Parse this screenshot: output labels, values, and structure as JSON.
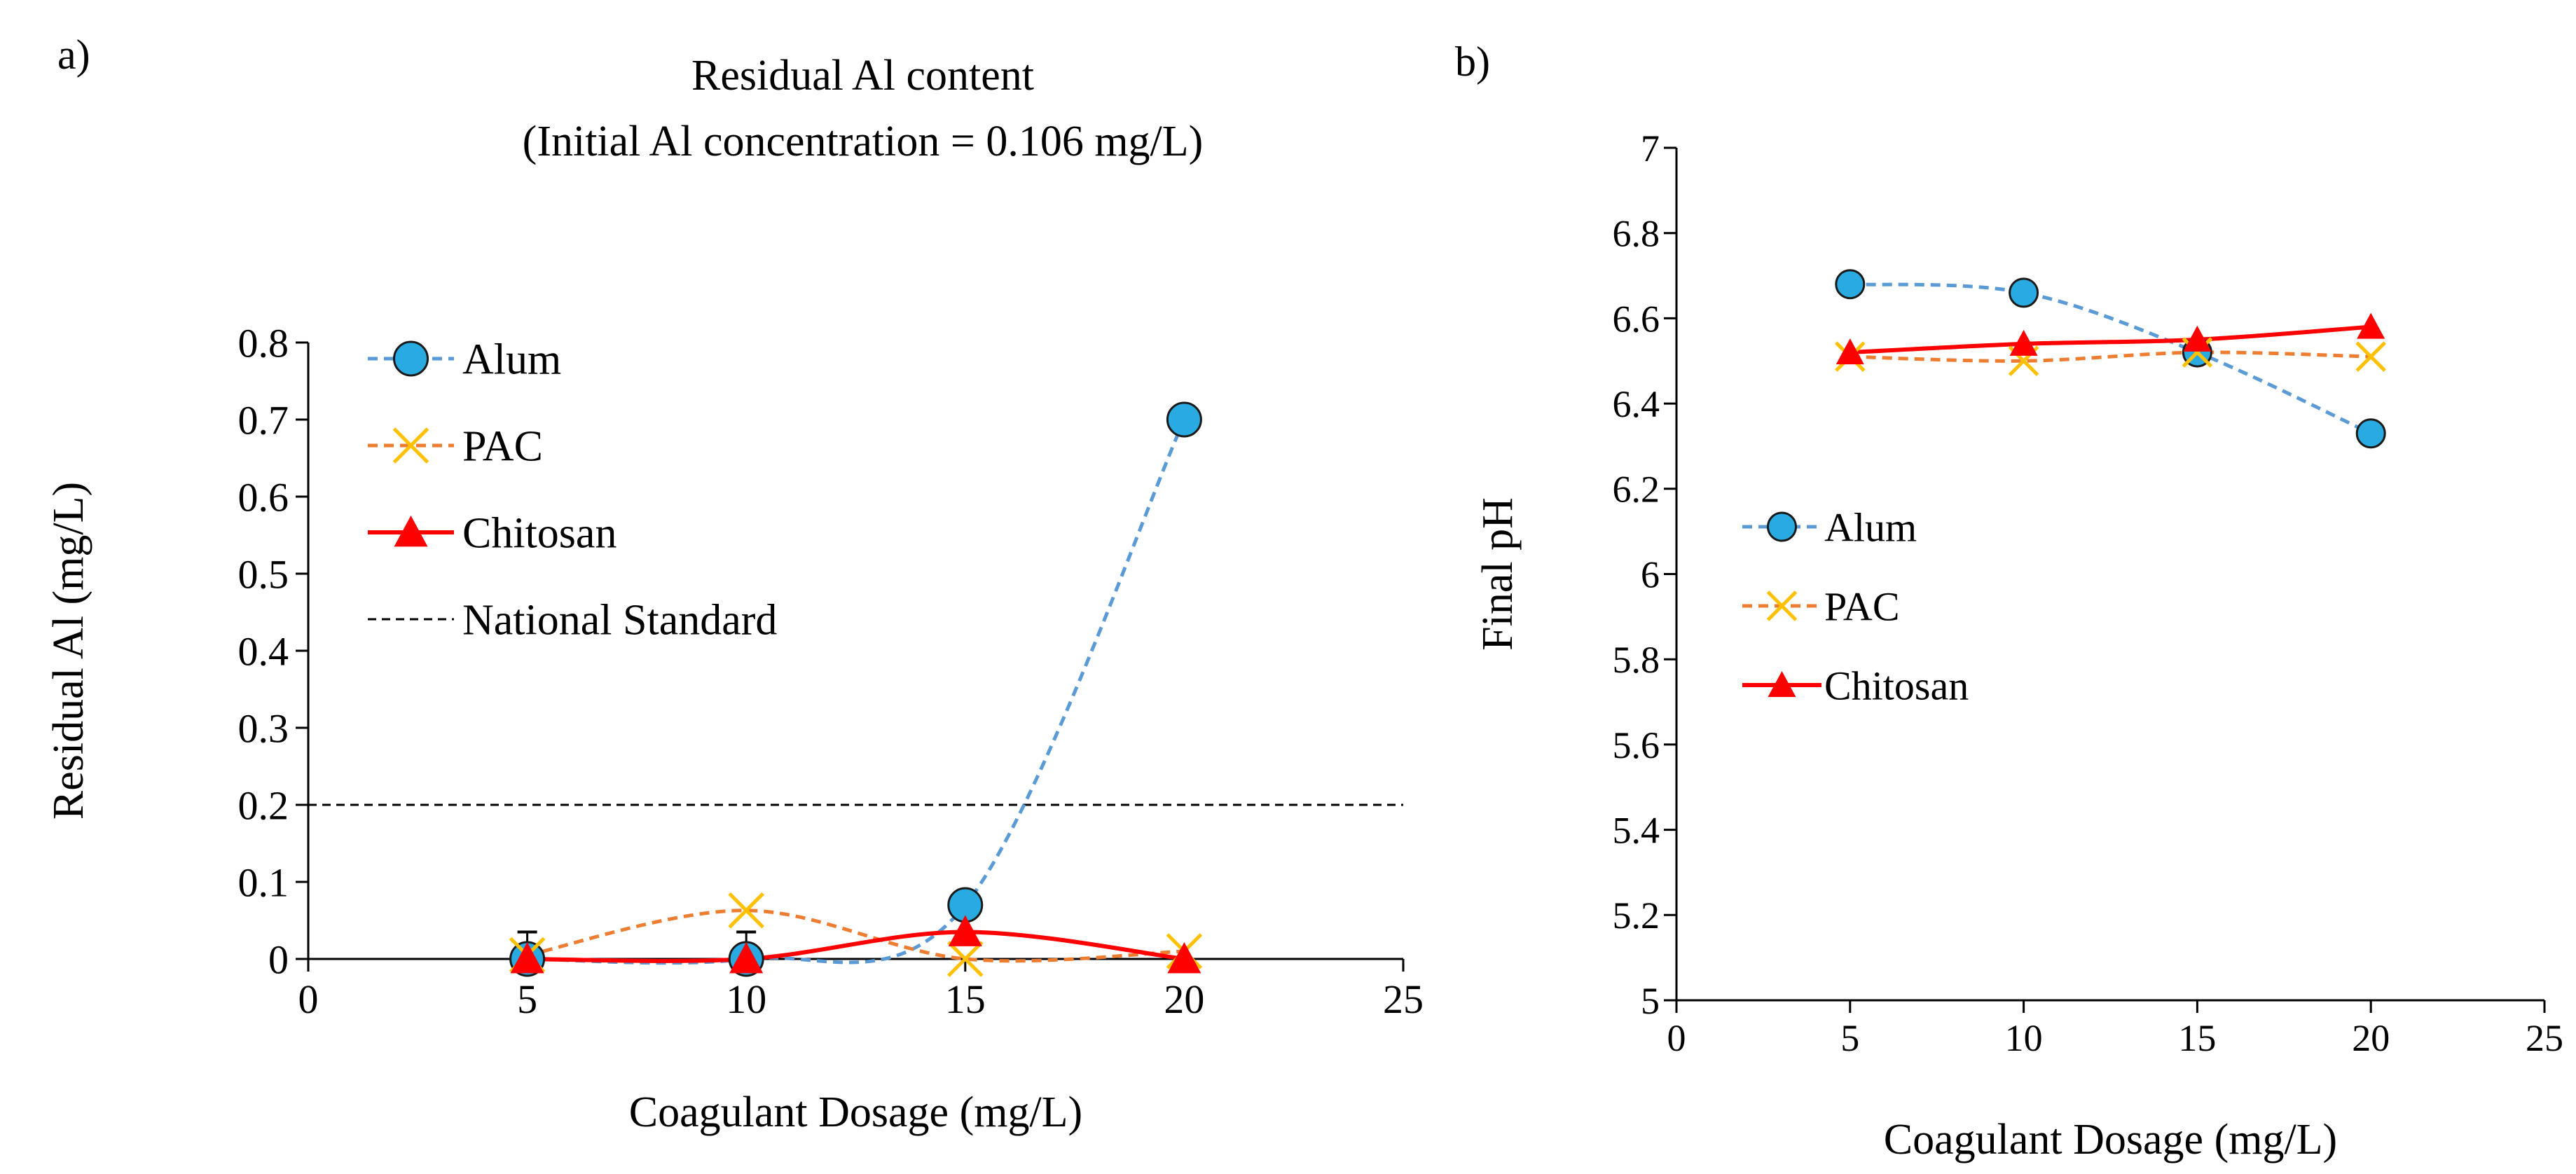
{
  "figure": {
    "colors": {
      "alum_line": "#5B9BD5",
      "alum_marker": "#29ABE2",
      "pac": "#ED7D31",
      "pac_marker": "#FFC000",
      "chitosan": "#FF0000",
      "standard": "#000000",
      "axis": "#000000"
    }
  },
  "chart_data": [
    {
      "panel_label": "a)",
      "type": "line",
      "title": "Residual Al content",
      "subtitle": "(Initial Al concentration = 0.106 mg/L)",
      "xlabel": "Coagulant Dosage (mg/L)",
      "ylabel": "Residual Al (mg/L)",
      "xlim": [
        0,
        25
      ],
      "ylim": [
        0,
        0.8
      ],
      "xticks": [
        "0",
        "5",
        "10",
        "15",
        "20",
        "25"
      ],
      "yticks": [
        "0",
        "0.1",
        "0.2",
        "0.3",
        "0.4",
        "0.5",
        "0.6",
        "0.7",
        "0.8"
      ],
      "legend_position": "top-left",
      "x": [
        5,
        10,
        15,
        20
      ],
      "series": [
        {
          "name": "Alum",
          "marker": "circle",
          "values": [
            0,
            0,
            0.07,
            0.7
          ]
        },
        {
          "name": "PAC",
          "marker": "x",
          "values": [
            0.005,
            0.063,
            0,
            0.01
          ]
        },
        {
          "name": "Chitosan",
          "marker": "triangle",
          "values": [
            0,
            0,
            0.035,
            0
          ]
        }
      ],
      "error_bars": {
        "x": [
          5,
          10
        ],
        "upper": [
          0.035,
          0.035
        ]
      },
      "reference_line": {
        "name": "National Standard",
        "value": 0.2
      }
    },
    {
      "panel_label": "b)",
      "type": "line",
      "title": "",
      "xlabel": "Coagulant Dosage (mg/L)",
      "ylabel": "Final pH",
      "xlim": [
        0,
        25
      ],
      "ylim": [
        5,
        7
      ],
      "xticks": [
        "0",
        "5",
        "10",
        "15",
        "20",
        "25"
      ],
      "yticks": [
        "5",
        "5.2",
        "5.4",
        "5.6",
        "5.8",
        "6",
        "6.2",
        "6.4",
        "6.6",
        "6.8",
        "7"
      ],
      "legend_position": "center-left",
      "x": [
        5,
        10,
        15,
        20
      ],
      "series": [
        {
          "name": "Alum",
          "marker": "circle",
          "values": [
            6.68,
            6.66,
            6.52,
            6.33
          ]
        },
        {
          "name": "PAC",
          "marker": "x",
          "values": [
            6.51,
            6.5,
            6.52,
            6.51
          ]
        },
        {
          "name": "Chitosan",
          "marker": "triangle",
          "values": [
            6.52,
            6.54,
            6.55,
            6.58
          ]
        }
      ]
    }
  ]
}
